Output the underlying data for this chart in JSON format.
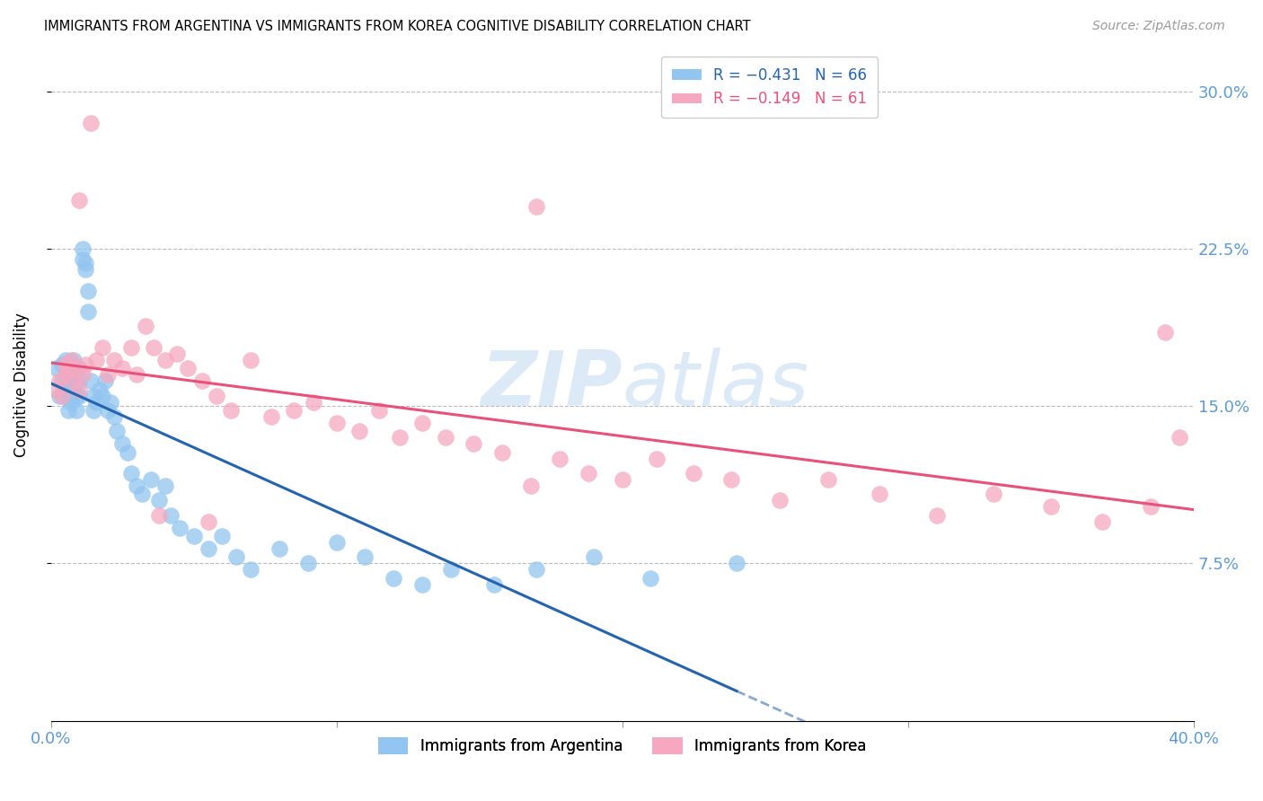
{
  "title": "IMMIGRANTS FROM ARGENTINA VS IMMIGRANTS FROM KOREA COGNITIVE DISABILITY CORRELATION CHART",
  "source": "Source: ZipAtlas.com",
  "ylabel": "Cognitive Disability",
  "ytick_labels": [
    "30.0%",
    "22.5%",
    "15.0%",
    "7.5%"
  ],
  "ytick_values": [
    0.3,
    0.225,
    0.15,
    0.075
  ],
  "xlim": [
    0.0,
    0.4
  ],
  "ylim": [
    0.0,
    0.32
  ],
  "legend1_r": "R = −0.431",
  "legend1_n": "N = 66",
  "legend2_r": "R = −0.149",
  "legend2_n": "N = 61",
  "color_argentina": "#92C5F0",
  "color_korea": "#F5A8C0",
  "color_line_argentina": "#2463AE",
  "color_line_korea": "#E8527A",
  "color_axis_label": "#5B9BD5",
  "background_color": "#FFFFFF",
  "argentina_x": [
    0.002,
    0.003,
    0.004,
    0.004,
    0.005,
    0.005,
    0.005,
    0.006,
    0.006,
    0.006,
    0.007,
    0.007,
    0.007,
    0.008,
    0.008,
    0.008,
    0.009,
    0.009,
    0.009,
    0.01,
    0.01,
    0.01,
    0.011,
    0.011,
    0.012,
    0.012,
    0.013,
    0.013,
    0.014,
    0.015,
    0.015,
    0.016,
    0.017,
    0.018,
    0.019,
    0.02,
    0.021,
    0.022,
    0.023,
    0.025,
    0.027,
    0.028,
    0.03,
    0.032,
    0.035,
    0.038,
    0.04,
    0.042,
    0.045,
    0.05,
    0.055,
    0.06,
    0.065,
    0.07,
    0.08,
    0.09,
    0.1,
    0.11,
    0.12,
    0.13,
    0.14,
    0.155,
    0.17,
    0.19,
    0.21,
    0.24
  ],
  "argentina_y": [
    0.168,
    0.155,
    0.162,
    0.17,
    0.158,
    0.165,
    0.172,
    0.148,
    0.155,
    0.162,
    0.17,
    0.158,
    0.152,
    0.165,
    0.172,
    0.16,
    0.155,
    0.148,
    0.162,
    0.168,
    0.155,
    0.162,
    0.22,
    0.225,
    0.215,
    0.218,
    0.195,
    0.205,
    0.162,
    0.155,
    0.148,
    0.152,
    0.158,
    0.155,
    0.162,
    0.148,
    0.152,
    0.145,
    0.138,
    0.132,
    0.128,
    0.118,
    0.112,
    0.108,
    0.115,
    0.105,
    0.112,
    0.098,
    0.092,
    0.088,
    0.082,
    0.088,
    0.078,
    0.072,
    0.082,
    0.075,
    0.085,
    0.078,
    0.068,
    0.065,
    0.072,
    0.065,
    0.072,
    0.078,
    0.068,
    0.075
  ],
  "korea_x": [
    0.002,
    0.003,
    0.004,
    0.005,
    0.005,
    0.006,
    0.007,
    0.008,
    0.009,
    0.01,
    0.011,
    0.012,
    0.014,
    0.016,
    0.018,
    0.02,
    0.022,
    0.025,
    0.028,
    0.03,
    0.033,
    0.036,
    0.04,
    0.044,
    0.048,
    0.053,
    0.058,
    0.063,
    0.07,
    0.077,
    0.085,
    0.092,
    0.1,
    0.108,
    0.115,
    0.122,
    0.13,
    0.138,
    0.148,
    0.158,
    0.168,
    0.178,
    0.188,
    0.2,
    0.212,
    0.225,
    0.238,
    0.255,
    0.272,
    0.29,
    0.31,
    0.33,
    0.35,
    0.368,
    0.385,
    0.39,
    0.395,
    0.01,
    0.038,
    0.055,
    0.17
  ],
  "korea_y": [
    0.158,
    0.162,
    0.155,
    0.165,
    0.17,
    0.168,
    0.172,
    0.162,
    0.168,
    0.158,
    0.165,
    0.17,
    0.285,
    0.172,
    0.178,
    0.165,
    0.172,
    0.168,
    0.178,
    0.165,
    0.188,
    0.178,
    0.172,
    0.175,
    0.168,
    0.162,
    0.155,
    0.148,
    0.172,
    0.145,
    0.148,
    0.152,
    0.142,
    0.138,
    0.148,
    0.135,
    0.142,
    0.135,
    0.132,
    0.128,
    0.112,
    0.125,
    0.118,
    0.115,
    0.125,
    0.118,
    0.115,
    0.105,
    0.115,
    0.108,
    0.098,
    0.108,
    0.102,
    0.095,
    0.102,
    0.185,
    0.135,
    0.248,
    0.098,
    0.095,
    0.245
  ]
}
